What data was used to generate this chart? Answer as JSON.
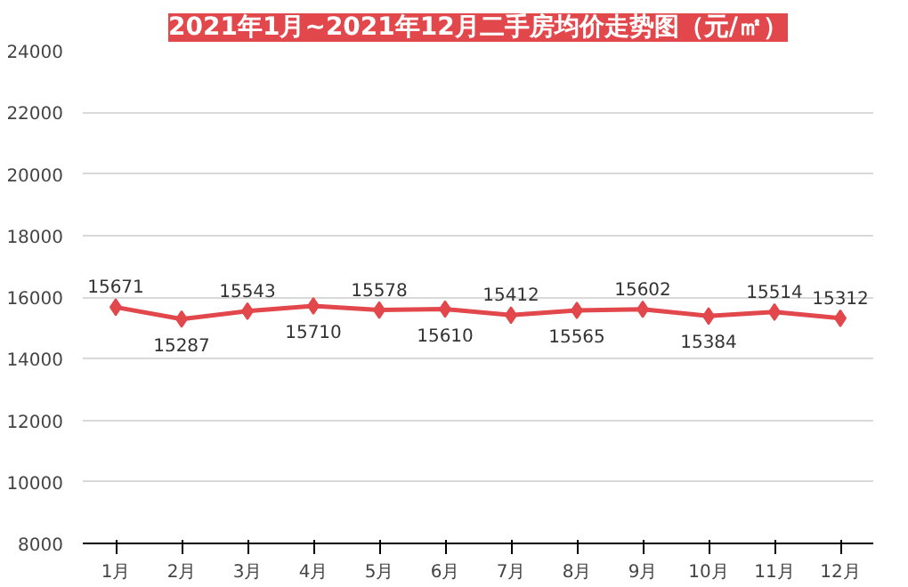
{
  "chart_data": {
    "type": "line",
    "title": "2021年1月~2021年12月二手房均价走势图（元/㎡）",
    "categories": [
      "1月",
      "2月",
      "3月",
      "4月",
      "5月",
      "6月",
      "7月",
      "8月",
      "9月",
      "10月",
      "11月",
      "12月"
    ],
    "series": [
      {
        "color": "#e2474c",
        "values": [
          15671,
          15287,
          15543,
          15710,
          15578,
          15610,
          15412,
          15565,
          15602,
          15384,
          15514,
          15312
        ]
      }
    ],
    "ylim": [
      8000,
      24000
    ],
    "yticks": [
      8000,
      10000,
      12000,
      14000,
      16000,
      18000,
      20000,
      22000,
      24000
    ],
    "grid": "y",
    "marker": "diamond",
    "line_style": "solid",
    "data_labels": true
  }
}
